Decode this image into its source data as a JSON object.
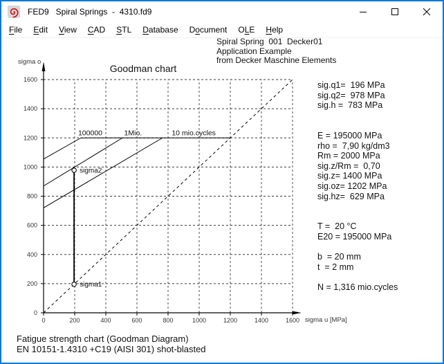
{
  "window": {
    "title": "FED9   Spiral Springs  -  4310.fd9"
  },
  "menu": {
    "items": [
      {
        "label": "File",
        "accel": 0
      },
      {
        "label": "Edit",
        "accel": 0
      },
      {
        "label": "View",
        "accel": 0
      },
      {
        "label": "CAD",
        "accel": 0
      },
      {
        "label": "STL",
        "accel": 0
      },
      {
        "label": "Database",
        "accel": 0
      },
      {
        "label": "Document",
        "accel": 1
      },
      {
        "label": "OLE",
        "accel": 1
      },
      {
        "label": "Help",
        "accel": 0
      }
    ]
  },
  "header_block": {
    "lines": [
      "Spiral Spring  001  Decker01",
      "Application Example",
      "from Decker Maschine Elements"
    ]
  },
  "results_panel": {
    "lines": [
      "sig.q1=  196 MPa",
      "sig.q2=  978 MPa",
      "sig.h =  783 MPa",
      "",
      "",
      "E = 195000 MPa",
      "rho =  7,90 kg/dm3",
      "Rm = 2000 MPa",
      "sig.z/Rm =  0,70",
      "sig.z= 1400 MPa",
      "sig.oz= 1202 MPa",
      "sig.hz=  629 MPa",
      "",
      "",
      "T =  20 °C",
      "E20 = 195000 MPa",
      "",
      "b  = 20 mm",
      "t  = 2 mm",
      "",
      "N = 1,316 mio.cycles"
    ]
  },
  "status": {
    "lines": [
      "Fatigue strength chart (Goodman Diagram)",
      "EN 10151-1.4310 +C19 (AISI 301) shot-blasted"
    ]
  },
  "colors": {
    "accent": "#0078d7",
    "icon_red": "#d01818",
    "line_black": "#000000",
    "grid_gray": "#3a3a3a"
  },
  "chart_data": {
    "type": "line",
    "title": "Goodman chart",
    "xlabel": "sigma u [MPa]",
    "ylabel": "sigma o",
    "xlim": [
      0,
      1600
    ],
    "ylim": [
      0,
      1600
    ],
    "xticks": [
      0,
      200,
      400,
      600,
      800,
      1000,
      1200,
      1400,
      1600
    ],
    "yticks": [
      0,
      200,
      400,
      600,
      800,
      1000,
      1200,
      1400,
      1600
    ],
    "grid": "dashed",
    "legend_position": "none",
    "series": [
      {
        "name": "cycles-100000-line",
        "points": [
          [
            0,
            1055
          ],
          [
            240,
            1200
          ]
        ],
        "dashed": false,
        "width": 1
      },
      {
        "name": "cycles-1mio-line",
        "points": [
          [
            0,
            870
          ],
          [
            507,
            1200
          ]
        ],
        "dashed": false,
        "width": 1
      },
      {
        "name": "cycles-10mio-line",
        "points": [
          [
            0,
            720
          ],
          [
            764,
            1200
          ]
        ],
        "dashed": false,
        "width": 1
      },
      {
        "name": "sig-oz-plateau",
        "points": [
          [
            240,
            1200
          ],
          [
            1200,
            1200
          ]
        ],
        "dashed": false,
        "width": 1
      },
      {
        "name": "diagonal-sigma-o-equals-sigma-u",
        "points": [
          [
            0,
            0
          ],
          [
            1600,
            1600
          ]
        ],
        "dashed": true,
        "width": 1
      },
      {
        "name": "operating-stress-line",
        "points": [
          [
            196,
            196
          ],
          [
            196,
            978
          ]
        ],
        "dashed": false,
        "width": 1.8
      }
    ],
    "markers": [
      {
        "x": 196,
        "y": 978,
        "label": "sigma2"
      },
      {
        "x": 196,
        "y": 196,
        "label": "sigma1"
      }
    ],
    "curve_labels": [
      {
        "text": "100000",
        "x": 300,
        "y": 1200
      },
      {
        "text": "1Mio.",
        "x": 575,
        "y": 1200
      },
      {
        "text": "10 mio.cycles",
        "x": 965,
        "y": 1200
      }
    ]
  }
}
